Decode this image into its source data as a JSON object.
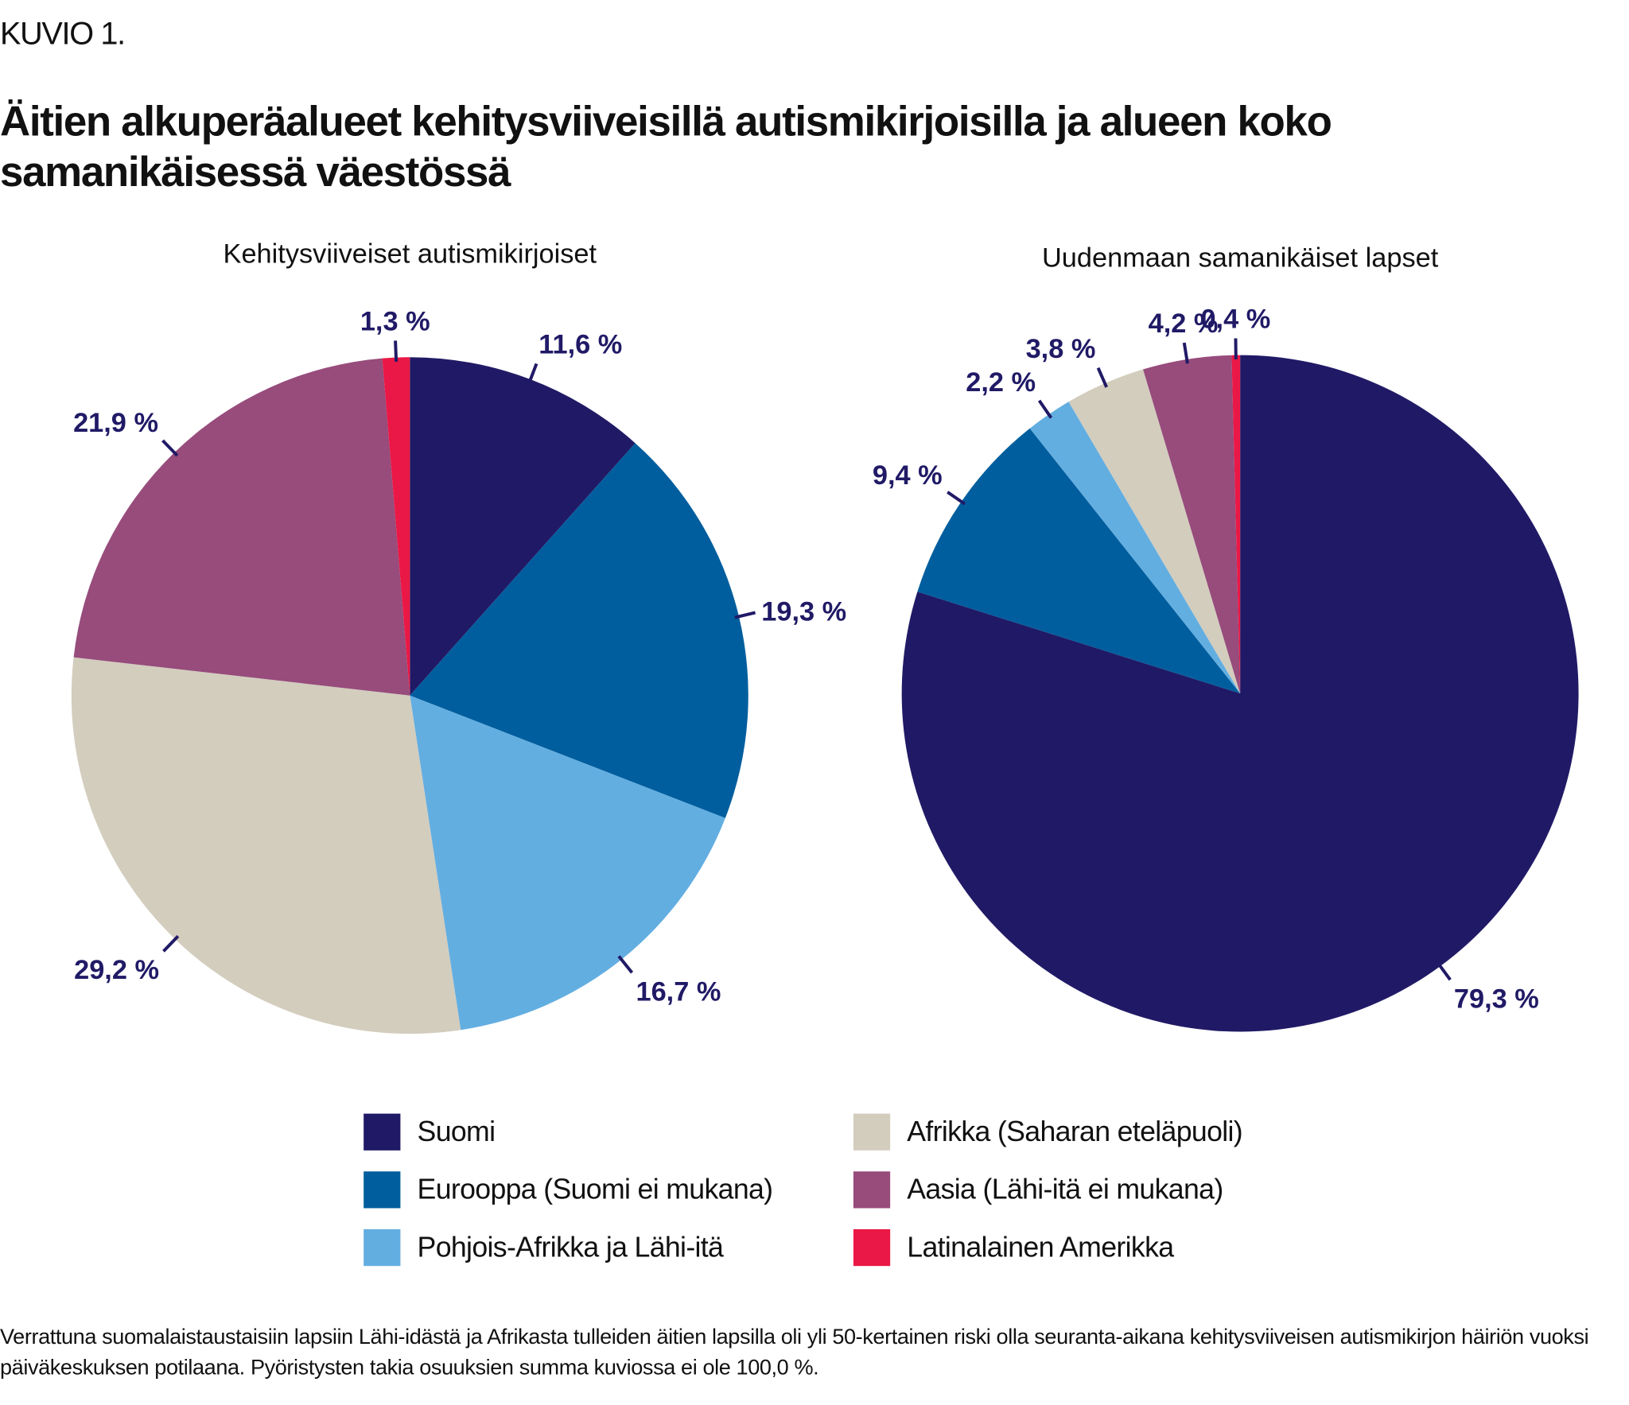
{
  "figure_label": "KUVIO 1.",
  "title": "Äitien alkuperäalueet kehitysviiveisillä autismikirjoisilla ja alueen koko samanikäisessä väestössä",
  "label_color": "#201A66",
  "legend": [
    {
      "label": "Suomi",
      "color": "#201A66"
    },
    {
      "label": "Eurooppa (Suomi ei mukana)",
      "color": "#005E9E"
    },
    {
      "label": "Pohjois-Afrikka ja Lähi-itä",
      "color": "#63AEE1"
    },
    {
      "label": "Afrikka (Saharan eteläpuoli)",
      "color": "#D3CDBE"
    },
    {
      "label": "Aasia (Lähi-itä ei mukana)",
      "color": "#974C7C"
    },
    {
      "label": "Latinalainen Amerikka",
      "color": "#EA1846"
    }
  ],
  "chart_data": [
    {
      "type": "pie",
      "title": "Kehitysviiveiset autismikirjoiset",
      "categories": [
        "Suomi",
        "Eurooppa (Suomi ei mukana)",
        "Pohjois-Afrikka ja Lähi-itä",
        "Afrikka (Saharan eteläpuoli)",
        "Aasia (Lähi-itä ei mukana)",
        "Latinalainen Amerikka"
      ],
      "values": [
        11.6,
        19.3,
        16.7,
        29.2,
        21.9,
        1.3
      ],
      "labels": [
        "11,6 %",
        "19,3 %",
        "16,7 %",
        "29,2 %",
        "21,9 %",
        "1,3 %"
      ]
    },
    {
      "type": "pie",
      "title": "Uudenmaan samanikäiset lapset",
      "categories": [
        "Suomi",
        "Eurooppa (Suomi ei mukana)",
        "Pohjois-Afrikka ja Lähi-itä",
        "Afrikka (Saharan eteläpuoli)",
        "Aasia (Lähi-itä ei mukana)",
        "Latinalainen Amerikka"
      ],
      "values": [
        79.3,
        9.4,
        2.2,
        3.8,
        4.2,
        0.4
      ],
      "labels": [
        "79,3 %",
        "9,4 %",
        "2,2 %",
        "3,8 %",
        "4,2 %",
        "0,4 %"
      ]
    }
  ],
  "note": "Verrattuna suomalaistaustaisiin lapsiin Lähi-idästä ja Afrikasta tulleiden äitien lapsilla oli yli 50-kertainen riski olla seuranta-aikana kehitysviiveisen autismikirjon häiriön vuoksi päiväkeskuksen potilaana. Pyöristysten takia osuuksien summa kuviossa ei ole 100,0 %."
}
